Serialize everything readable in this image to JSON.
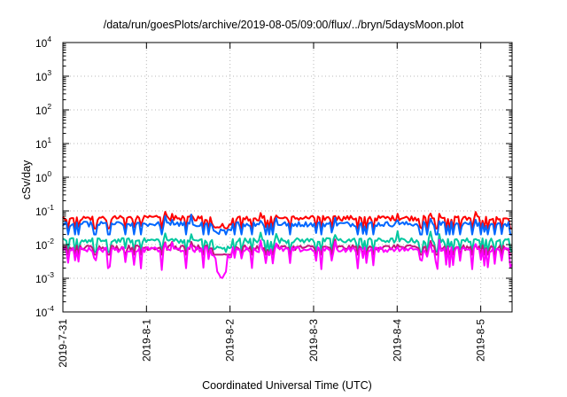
{
  "chart_data": {
    "type": "line",
    "title": "/data/run/goesPlots/archive/2019-08-05/09:00/flux/../bryn/5daysMoon.plot",
    "xlabel": "Coordinated Universal Time (UTC)",
    "ylabel": "cSv/day",
    "yscale": "log",
    "ylim": [
      0.0001,
      10000
    ],
    "xlim": [
      "2019-07-31 00:00",
      "2019-08-05 09:00"
    ],
    "grid": true,
    "x_ticks": [
      "2019-7-31",
      "2019-8-1",
      "2019-8-2",
      "2019-8-3",
      "2019-8-4",
      "2019-8-5"
    ],
    "y_ticks": [
      {
        "base": "10",
        "exp": "-4"
      },
      {
        "base": "10",
        "exp": "-3"
      },
      {
        "base": "10",
        "exp": "-2"
      },
      {
        "base": "10",
        "exp": "-1"
      },
      {
        "base": "10",
        "exp": "0"
      },
      {
        "base": "10",
        "exp": "1"
      },
      {
        "base": "10",
        "exp": "2"
      },
      {
        "base": "10",
        "exp": "3"
      },
      {
        "base": "10",
        "exp": "4"
      }
    ],
    "series": [
      {
        "color": "#ff0000",
        "typical": 0.06,
        "min": 0.03,
        "max": 0.1
      },
      {
        "color": "#0066ff",
        "typical": 0.04,
        "min": 0.02,
        "max": 0.08
      },
      {
        "color": "#00c8a0",
        "typical": 0.013,
        "min": 0.006,
        "max": 0.04
      },
      {
        "color": "#c0187a",
        "typical": 0.008,
        "min": 0.005,
        "max": 0.03
      },
      {
        "color": "#ff00ff",
        "typical": 0.007,
        "min": 0.0009,
        "max": 0.05
      }
    ]
  }
}
